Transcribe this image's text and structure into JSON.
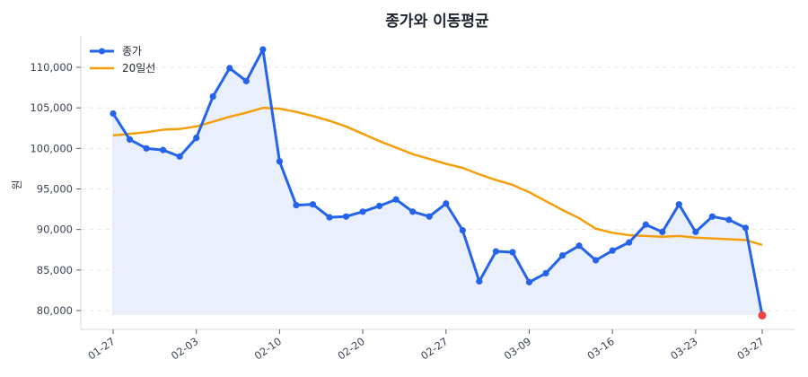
{
  "chart_data": {
    "type": "line",
    "title": "종가와 이동평균",
    "xlabel": "",
    "ylabel": "원",
    "ylim": [
      78500,
      113500
    ],
    "yticks": [
      80000,
      85000,
      90000,
      95000,
      100000,
      105000,
      110000
    ],
    "ytick_labels": [
      "80,000",
      "85,000",
      "90,000",
      "95,000",
      "100,000",
      "105,000",
      "110,000"
    ],
    "xtick_labels": [
      "01-27",
      "02-03",
      "02-10",
      "02-20",
      "02-27",
      "03-09",
      "03-16",
      "03-23",
      "03-27"
    ],
    "xtick_indices": [
      0,
      5,
      10,
      15,
      20,
      25,
      30,
      35,
      39
    ],
    "grid": "horizontal dashed",
    "legend_position": "upper left",
    "series": [
      {
        "name": "종가",
        "color": "#2563eb",
        "marker": "circle",
        "fill": "#eaf0fb",
        "values": [
          104300,
          101100,
          100000,
          99800,
          99000,
          101300,
          106400,
          109900,
          108300,
          112200,
          98400,
          93000,
          93100,
          91500,
          91600,
          92200,
          92900,
          93700,
          92200,
          91600,
          93200,
          89900,
          83600,
          87300,
          87200,
          83500,
          84600,
          86800,
          88000,
          86200,
          87400,
          88400,
          90600,
          89700,
          93100,
          89700,
          91600,
          91200,
          90200,
          79400
        ]
      },
      {
        "name": "20일선",
        "color": "#f59e0b",
        "marker": "none",
        "values": [
          101600,
          101800,
          102000,
          102300,
          102400,
          102700,
          103300,
          103900,
          104400,
          105000,
          104900,
          104500,
          104000,
          103400,
          102700,
          101800,
          100900,
          100100,
          99300,
          98700,
          98100,
          97600,
          96800,
          96100,
          95500,
          94600,
          93500,
          92400,
          91400,
          90100,
          89600,
          89300,
          89200,
          89100,
          89200,
          89000,
          88900,
          88800,
          88700,
          88100
        ]
      }
    ],
    "highlight_last_point": {
      "color": "#ef4444",
      "value": 79400
    }
  }
}
